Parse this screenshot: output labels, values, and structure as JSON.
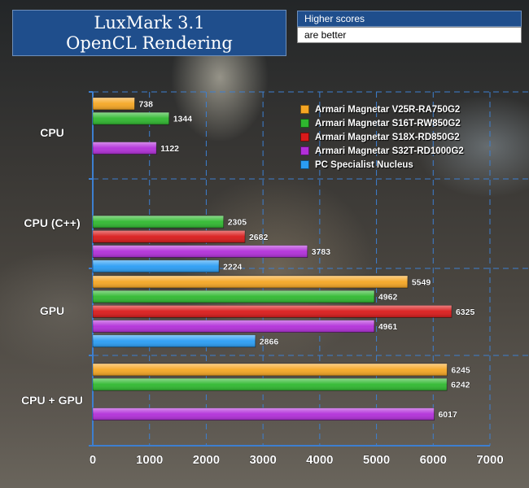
{
  "title": {
    "line1": "LuxMark 3.1",
    "line2": "OpenCL Rendering"
  },
  "note": {
    "line1": "Higher scores",
    "line2": "are better"
  },
  "chart_data": {
    "type": "bar",
    "orientation": "horizontal",
    "categories": [
      "CPU",
      "CPU (C++)",
      "GPU",
      "CPU + GPU"
    ],
    "series": [
      {
        "name": "Armari Magnetar V25R-RA750G2",
        "color": "#f5a623",
        "values": [
          738,
          null,
          5549,
          6245
        ]
      },
      {
        "name": "Armari Magnetar S16T-RW850G2",
        "color": "#2fb82f",
        "values": [
          1344,
          2305,
          4962,
          6242
        ]
      },
      {
        "name": "Armari Magnetar S18X-RD850G2",
        "color": "#d91a1a",
        "values": [
          null,
          2682,
          6325,
          null
        ]
      },
      {
        "name": "Armari Magnetar S32T-RD1000G2",
        "color": "#b22fd9",
        "values": [
          1122,
          3783,
          4961,
          6017
        ]
      },
      {
        "name": "PC Specialist Nucleus",
        "color": "#2a9df4",
        "values": [
          null,
          2224,
          2866,
          null
        ]
      }
    ],
    "xlim": [
      0,
      7000
    ],
    "xticks": [
      0,
      1000,
      2000,
      3000,
      4000,
      5000,
      6000,
      7000
    ],
    "grid": true,
    "legend_position": "top-right"
  }
}
